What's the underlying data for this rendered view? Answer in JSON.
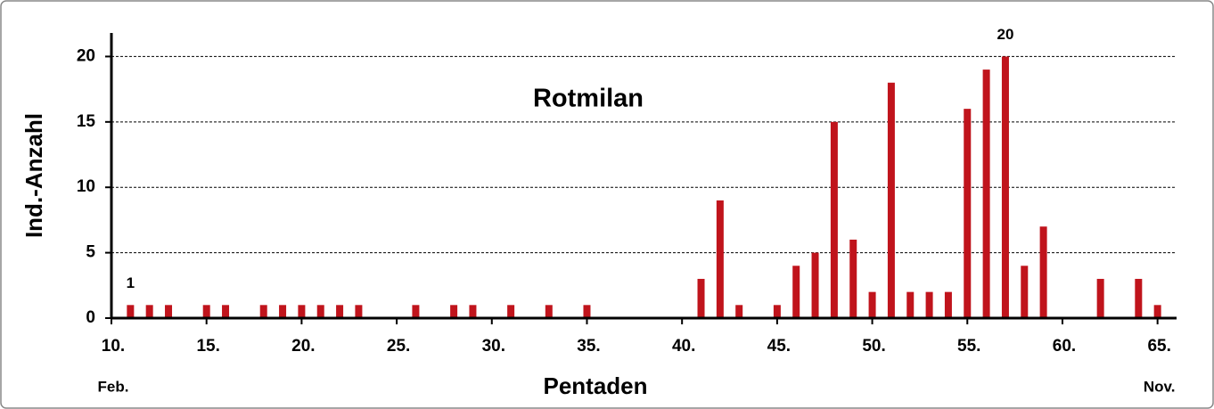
{
  "chart_data": {
    "type": "bar",
    "title": "Rotmilan",
    "x_label": "Pentaden",
    "y_label": "Ind.-Anzahl",
    "x": [
      11,
      12,
      13,
      15,
      16,
      18,
      19,
      20,
      21,
      22,
      23,
      26,
      28,
      29,
      31,
      33,
      35,
      41,
      42,
      43,
      45,
      46,
      47,
      48,
      49,
      50,
      51,
      52,
      53,
      54,
      55,
      56,
      57,
      58,
      59,
      62,
      64,
      65
    ],
    "values": [
      1,
      1,
      1,
      1,
      1,
      1,
      1,
      1,
      1,
      1,
      1,
      1,
      1,
      1,
      1,
      1,
      1,
      3,
      9,
      1,
      1,
      4,
      5,
      15,
      6,
      2,
      18,
      2,
      2,
      2,
      16,
      19,
      20,
      4,
      7,
      3,
      3,
      1
    ],
    "value_labels": [
      "1",
      null,
      null,
      null,
      null,
      null,
      null,
      null,
      null,
      null,
      null,
      null,
      null,
      null,
      null,
      null,
      null,
      null,
      null,
      null,
      null,
      null,
      null,
      null,
      null,
      null,
      null,
      null,
      null,
      null,
      null,
      null,
      "20",
      null,
      null,
      null,
      null,
      null
    ],
    "color": "#c0141c",
    "xlim": [
      10,
      66
    ],
    "ylim": [
      0,
      21.8
    ],
    "xticks": [
      {
        "value": 10,
        "label": "10."
      },
      {
        "value": 15,
        "label": "15."
      },
      {
        "value": 20,
        "label": "20."
      },
      {
        "value": 25,
        "label": "25."
      },
      {
        "value": 30,
        "label": "30."
      },
      {
        "value": 35,
        "label": "35."
      },
      {
        "value": 40,
        "label": "40."
      },
      {
        "value": 45,
        "label": "45."
      },
      {
        "value": 50,
        "label": "50."
      },
      {
        "value": 55,
        "label": "55."
      },
      {
        "value": 60,
        "label": "60."
      },
      {
        "value": 65,
        "label": "65."
      }
    ],
    "yticks": [
      0,
      5,
      10,
      15,
      20
    ],
    "x_period_labels": [
      {
        "value": 10,
        "label": "Feb."
      },
      {
        "value": 65,
        "label": "Nov."
      }
    ],
    "grid": true
  }
}
